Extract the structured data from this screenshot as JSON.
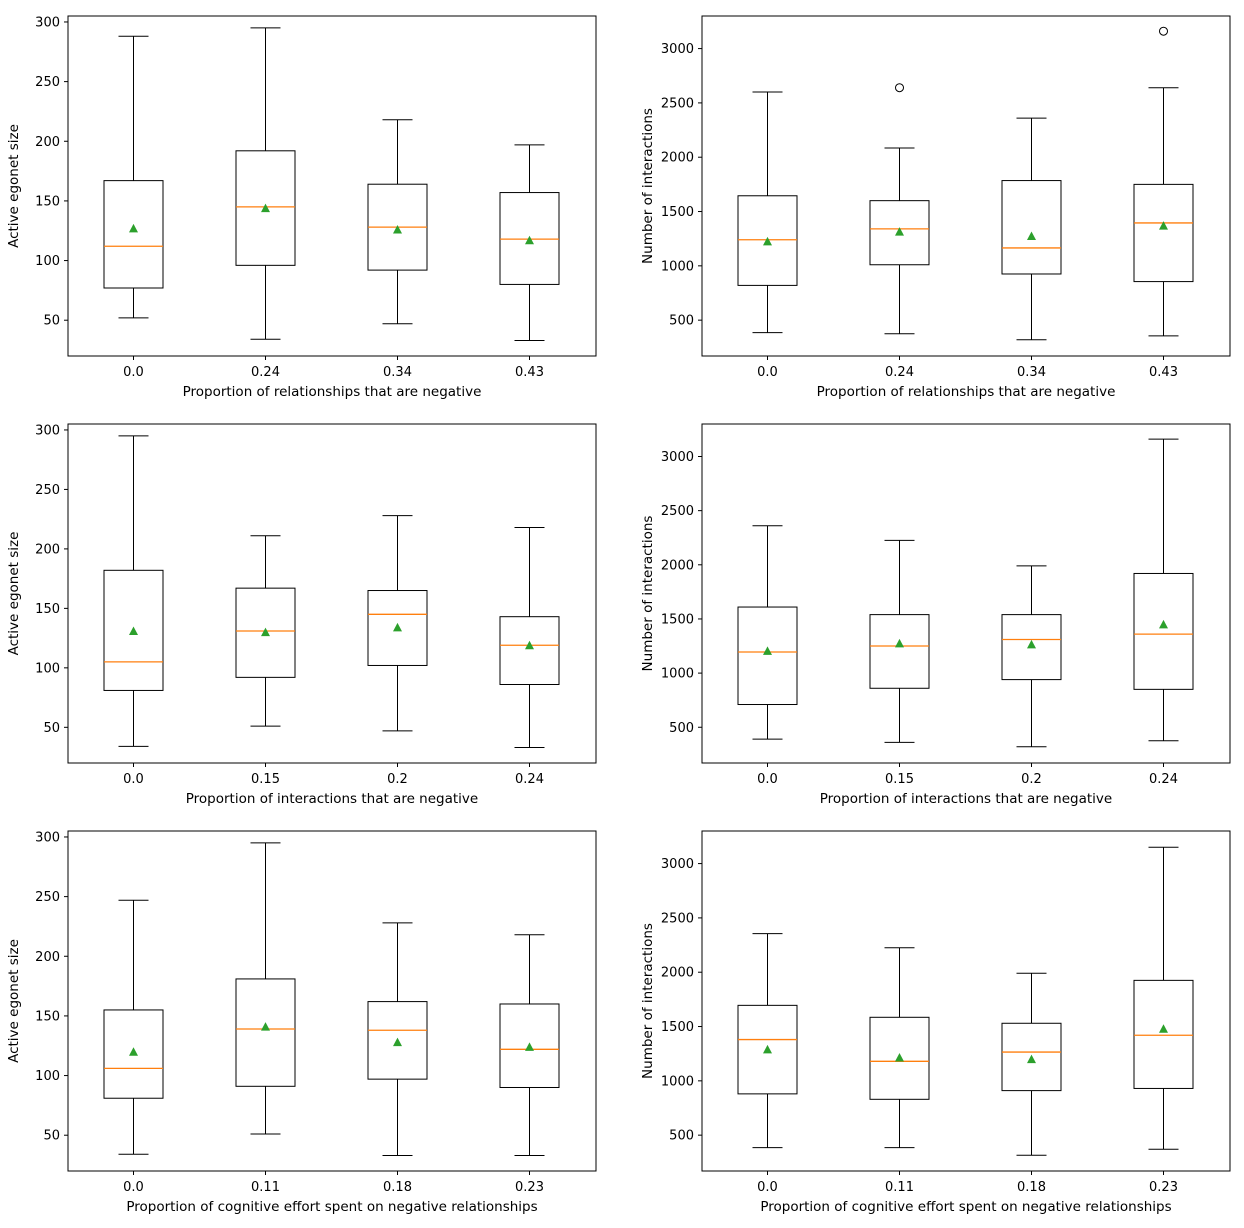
{
  "colors": {
    "box": "#000000",
    "median": "#ff7f0e",
    "mean": "#2ca02c",
    "frame": "#000000"
  },
  "chart_data": [
    {
      "type": "boxplot",
      "xlabel": "Proportion of relationships that are negative",
      "ylabel": "Active egonet size",
      "ylim": [
        20,
        305
      ],
      "yticks": [
        50,
        100,
        150,
        200,
        250,
        300
      ],
      "categories": [
        "0.0",
        "0.24",
        "0.34",
        "0.43"
      ],
      "boxes": [
        {
          "whislo": 52,
          "q1": 77,
          "med": 112,
          "q3": 167,
          "whishi": 288,
          "mean": 127,
          "fliers": []
        },
        {
          "whislo": 34,
          "q1": 96,
          "med": 145,
          "q3": 192,
          "whishi": 295,
          "mean": 144,
          "fliers": []
        },
        {
          "whislo": 47,
          "q1": 92,
          "med": 128,
          "q3": 164,
          "whishi": 218,
          "mean": 126,
          "fliers": []
        },
        {
          "whislo": 33,
          "q1": 80,
          "med": 118,
          "q3": 157,
          "whishi": 197,
          "mean": 117,
          "fliers": []
        }
      ]
    },
    {
      "type": "boxplot",
      "xlabel": "Proportion of relationships that are negative",
      "ylabel": "Number of interactions",
      "ylim": [
        170,
        3300
      ],
      "yticks": [
        500,
        1000,
        1500,
        2000,
        2500,
        3000
      ],
      "categories": [
        "0.0",
        "0.24",
        "0.34",
        "0.43"
      ],
      "boxes": [
        {
          "whislo": 385,
          "q1": 820,
          "med": 1240,
          "q3": 1645,
          "whishi": 2600,
          "mean": 1225,
          "fliers": []
        },
        {
          "whislo": 375,
          "q1": 1010,
          "med": 1340,
          "q3": 1600,
          "whishi": 2085,
          "mean": 1315,
          "fliers": [
            2640
          ]
        },
        {
          "whislo": 320,
          "q1": 925,
          "med": 1165,
          "q3": 1785,
          "whishi": 2360,
          "mean": 1275,
          "fliers": []
        },
        {
          "whislo": 355,
          "q1": 855,
          "med": 1395,
          "q3": 1750,
          "whishi": 2640,
          "mean": 1370,
          "fliers": [
            3160
          ]
        }
      ]
    },
    {
      "type": "boxplot",
      "xlabel": "Proportion of interactions that are negative",
      "ylabel": "Active egonet size",
      "ylim": [
        20,
        305
      ],
      "yticks": [
        50,
        100,
        150,
        200,
        250,
        300
      ],
      "categories": [
        "0.0",
        "0.15",
        "0.2",
        "0.24"
      ],
      "boxes": [
        {
          "whislo": 34,
          "q1": 81,
          "med": 105,
          "q3": 182,
          "whishi": 295,
          "mean": 131,
          "fliers": []
        },
        {
          "whislo": 51,
          "q1": 92,
          "med": 131,
          "q3": 167,
          "whishi": 211,
          "mean": 130,
          "fliers": []
        },
        {
          "whislo": 47,
          "q1": 102,
          "med": 145,
          "q3": 165,
          "whishi": 228,
          "mean": 134,
          "fliers": []
        },
        {
          "whislo": 33,
          "q1": 86,
          "med": 119,
          "q3": 143,
          "whishi": 218,
          "mean": 119,
          "fliers": []
        }
      ]
    },
    {
      "type": "boxplot",
      "xlabel": "Proportion of interactions that are negative",
      "ylabel": "Number of interactions",
      "ylim": [
        170,
        3300
      ],
      "yticks": [
        500,
        1000,
        1500,
        2000,
        2500,
        3000
      ],
      "categories": [
        "0.0",
        "0.15",
        "0.2",
        "0.24"
      ],
      "boxes": [
        {
          "whislo": 390,
          "q1": 710,
          "med": 1195,
          "q3": 1610,
          "whishi": 2360,
          "mean": 1205,
          "fliers": []
        },
        {
          "whislo": 360,
          "q1": 860,
          "med": 1250,
          "q3": 1540,
          "whishi": 2225,
          "mean": 1275,
          "fliers": []
        },
        {
          "whislo": 320,
          "q1": 940,
          "med": 1310,
          "q3": 1540,
          "whishi": 1990,
          "mean": 1265,
          "fliers": []
        },
        {
          "whislo": 375,
          "q1": 850,
          "med": 1360,
          "q3": 1920,
          "whishi": 3160,
          "mean": 1450,
          "fliers": []
        }
      ]
    },
    {
      "type": "boxplot",
      "xlabel": "Proportion of cognitive effort spent on negative relationships",
      "ylabel": "Active egonet size",
      "ylim": [
        20,
        305
      ],
      "yticks": [
        50,
        100,
        150,
        200,
        250,
        300
      ],
      "categories": [
        "0.0",
        "0.11",
        "0.18",
        "0.23"
      ],
      "boxes": [
        {
          "whislo": 34,
          "q1": 81,
          "med": 106,
          "q3": 155,
          "whishi": 247,
          "mean": 120,
          "fliers": []
        },
        {
          "whislo": 51,
          "q1": 91,
          "med": 139,
          "q3": 181,
          "whishi": 295,
          "mean": 141,
          "fliers": []
        },
        {
          "whislo": 33,
          "q1": 97,
          "med": 138,
          "q3": 162,
          "whishi": 228,
          "mean": 128,
          "fliers": []
        },
        {
          "whislo": 33,
          "q1": 90,
          "med": 122,
          "q3": 160,
          "whishi": 218,
          "mean": 124,
          "fliers": []
        }
      ]
    },
    {
      "type": "boxplot",
      "xlabel": "Proportion of cognitive effort spent on negative relationships",
      "ylabel": "Number of interactions",
      "ylim": [
        170,
        3300
      ],
      "yticks": [
        500,
        1000,
        1500,
        2000,
        2500,
        3000
      ],
      "categories": [
        "0.0",
        "0.11",
        "0.18",
        "0.23"
      ],
      "boxes": [
        {
          "whislo": 385,
          "q1": 880,
          "med": 1380,
          "q3": 1695,
          "whishi": 2355,
          "mean": 1290,
          "fliers": []
        },
        {
          "whislo": 385,
          "q1": 830,
          "med": 1180,
          "q3": 1585,
          "whishi": 2225,
          "mean": 1215,
          "fliers": []
        },
        {
          "whislo": 315,
          "q1": 910,
          "med": 1265,
          "q3": 1530,
          "whishi": 1990,
          "mean": 1200,
          "fliers": []
        },
        {
          "whislo": 370,
          "q1": 930,
          "med": 1420,
          "q3": 1925,
          "whishi": 3150,
          "mean": 1480,
          "fliers": []
        }
      ]
    }
  ]
}
